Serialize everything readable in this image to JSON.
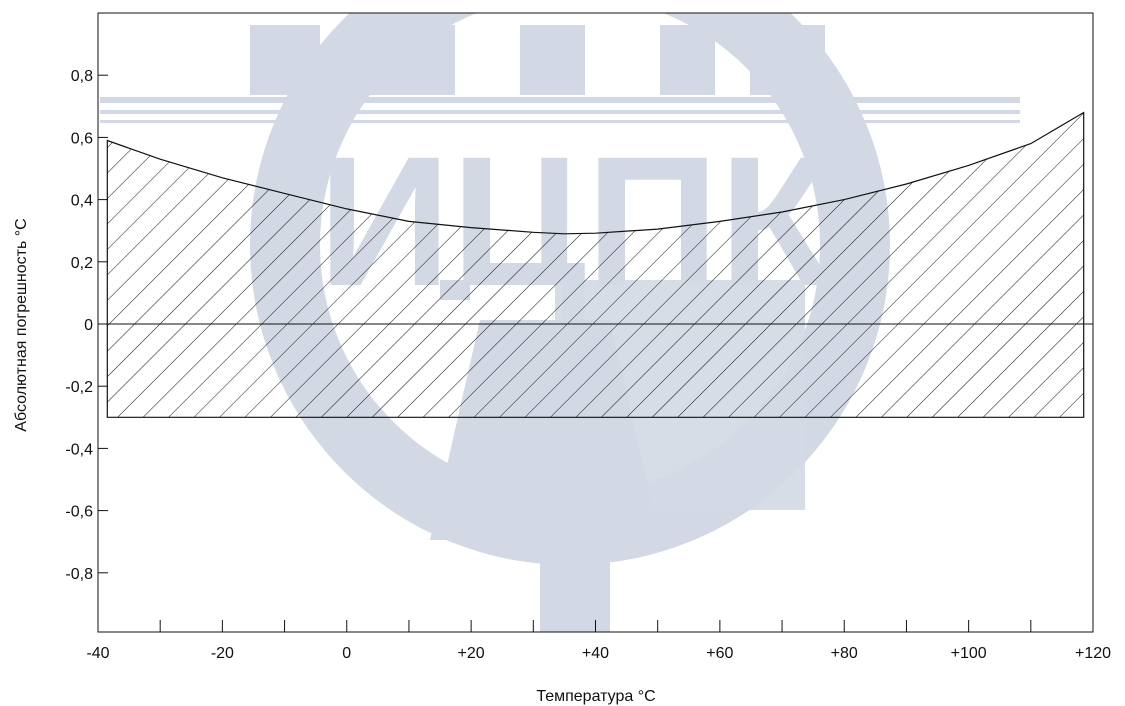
{
  "chart_data": {
    "type": "area",
    "xlabel": "Температура °С",
    "ylabel": "Абсолютная погрешность °С",
    "xlim": [
      -40,
      120
    ],
    "ylim": [
      -1.0,
      1.0
    ],
    "x_ticks": [
      -40,
      -20,
      0,
      20,
      40,
      60,
      80,
      100,
      120
    ],
    "x_tick_labels": [
      "-40",
      "-20",
      "0",
      "+20",
      "+40",
      "+60",
      "+80",
      "+100",
      "+120"
    ],
    "x_minor_ticks": [
      -30,
      -10,
      10,
      30,
      50,
      70,
      90,
      110
    ],
    "y_ticks": [
      0.8,
      0.6,
      0.4,
      0.2,
      0,
      -0.2,
      -0.4,
      -0.6,
      -0.8
    ],
    "y_tick_labels": [
      "0,8",
      "0,6",
      "0,4",
      "0,2",
      "0",
      "-0,2",
      "-0,4",
      "-0,6",
      "-0,8"
    ],
    "zero_line": true,
    "band": {
      "name": "",
      "x": [
        -38.5,
        -30,
        -20,
        -10,
        0,
        10,
        20,
        30,
        35,
        40,
        50,
        60,
        70,
        80,
        90,
        100,
        110,
        118.5
      ],
      "upper": [
        0.59,
        0.53,
        0.47,
        0.42,
        0.37,
        0.33,
        0.31,
        0.295,
        0.29,
        0.292,
        0.305,
        0.33,
        0.36,
        0.4,
        0.45,
        0.51,
        0.58,
        0.68
      ],
      "lower": [
        -0.3,
        -0.3,
        -0.3,
        -0.3,
        -0.3,
        -0.3,
        -0.3,
        -0.3,
        -0.3,
        -0.3,
        -0.3,
        -0.3,
        -0.3,
        -0.3,
        -0.3,
        -0.3,
        -0.3,
        -0.3
      ],
      "fill": "hatched"
    },
    "watermark": "ИЦПК",
    "colors": {
      "line": "#111111",
      "hatch": "#111111",
      "watermark": "#d3d9e4"
    }
  }
}
